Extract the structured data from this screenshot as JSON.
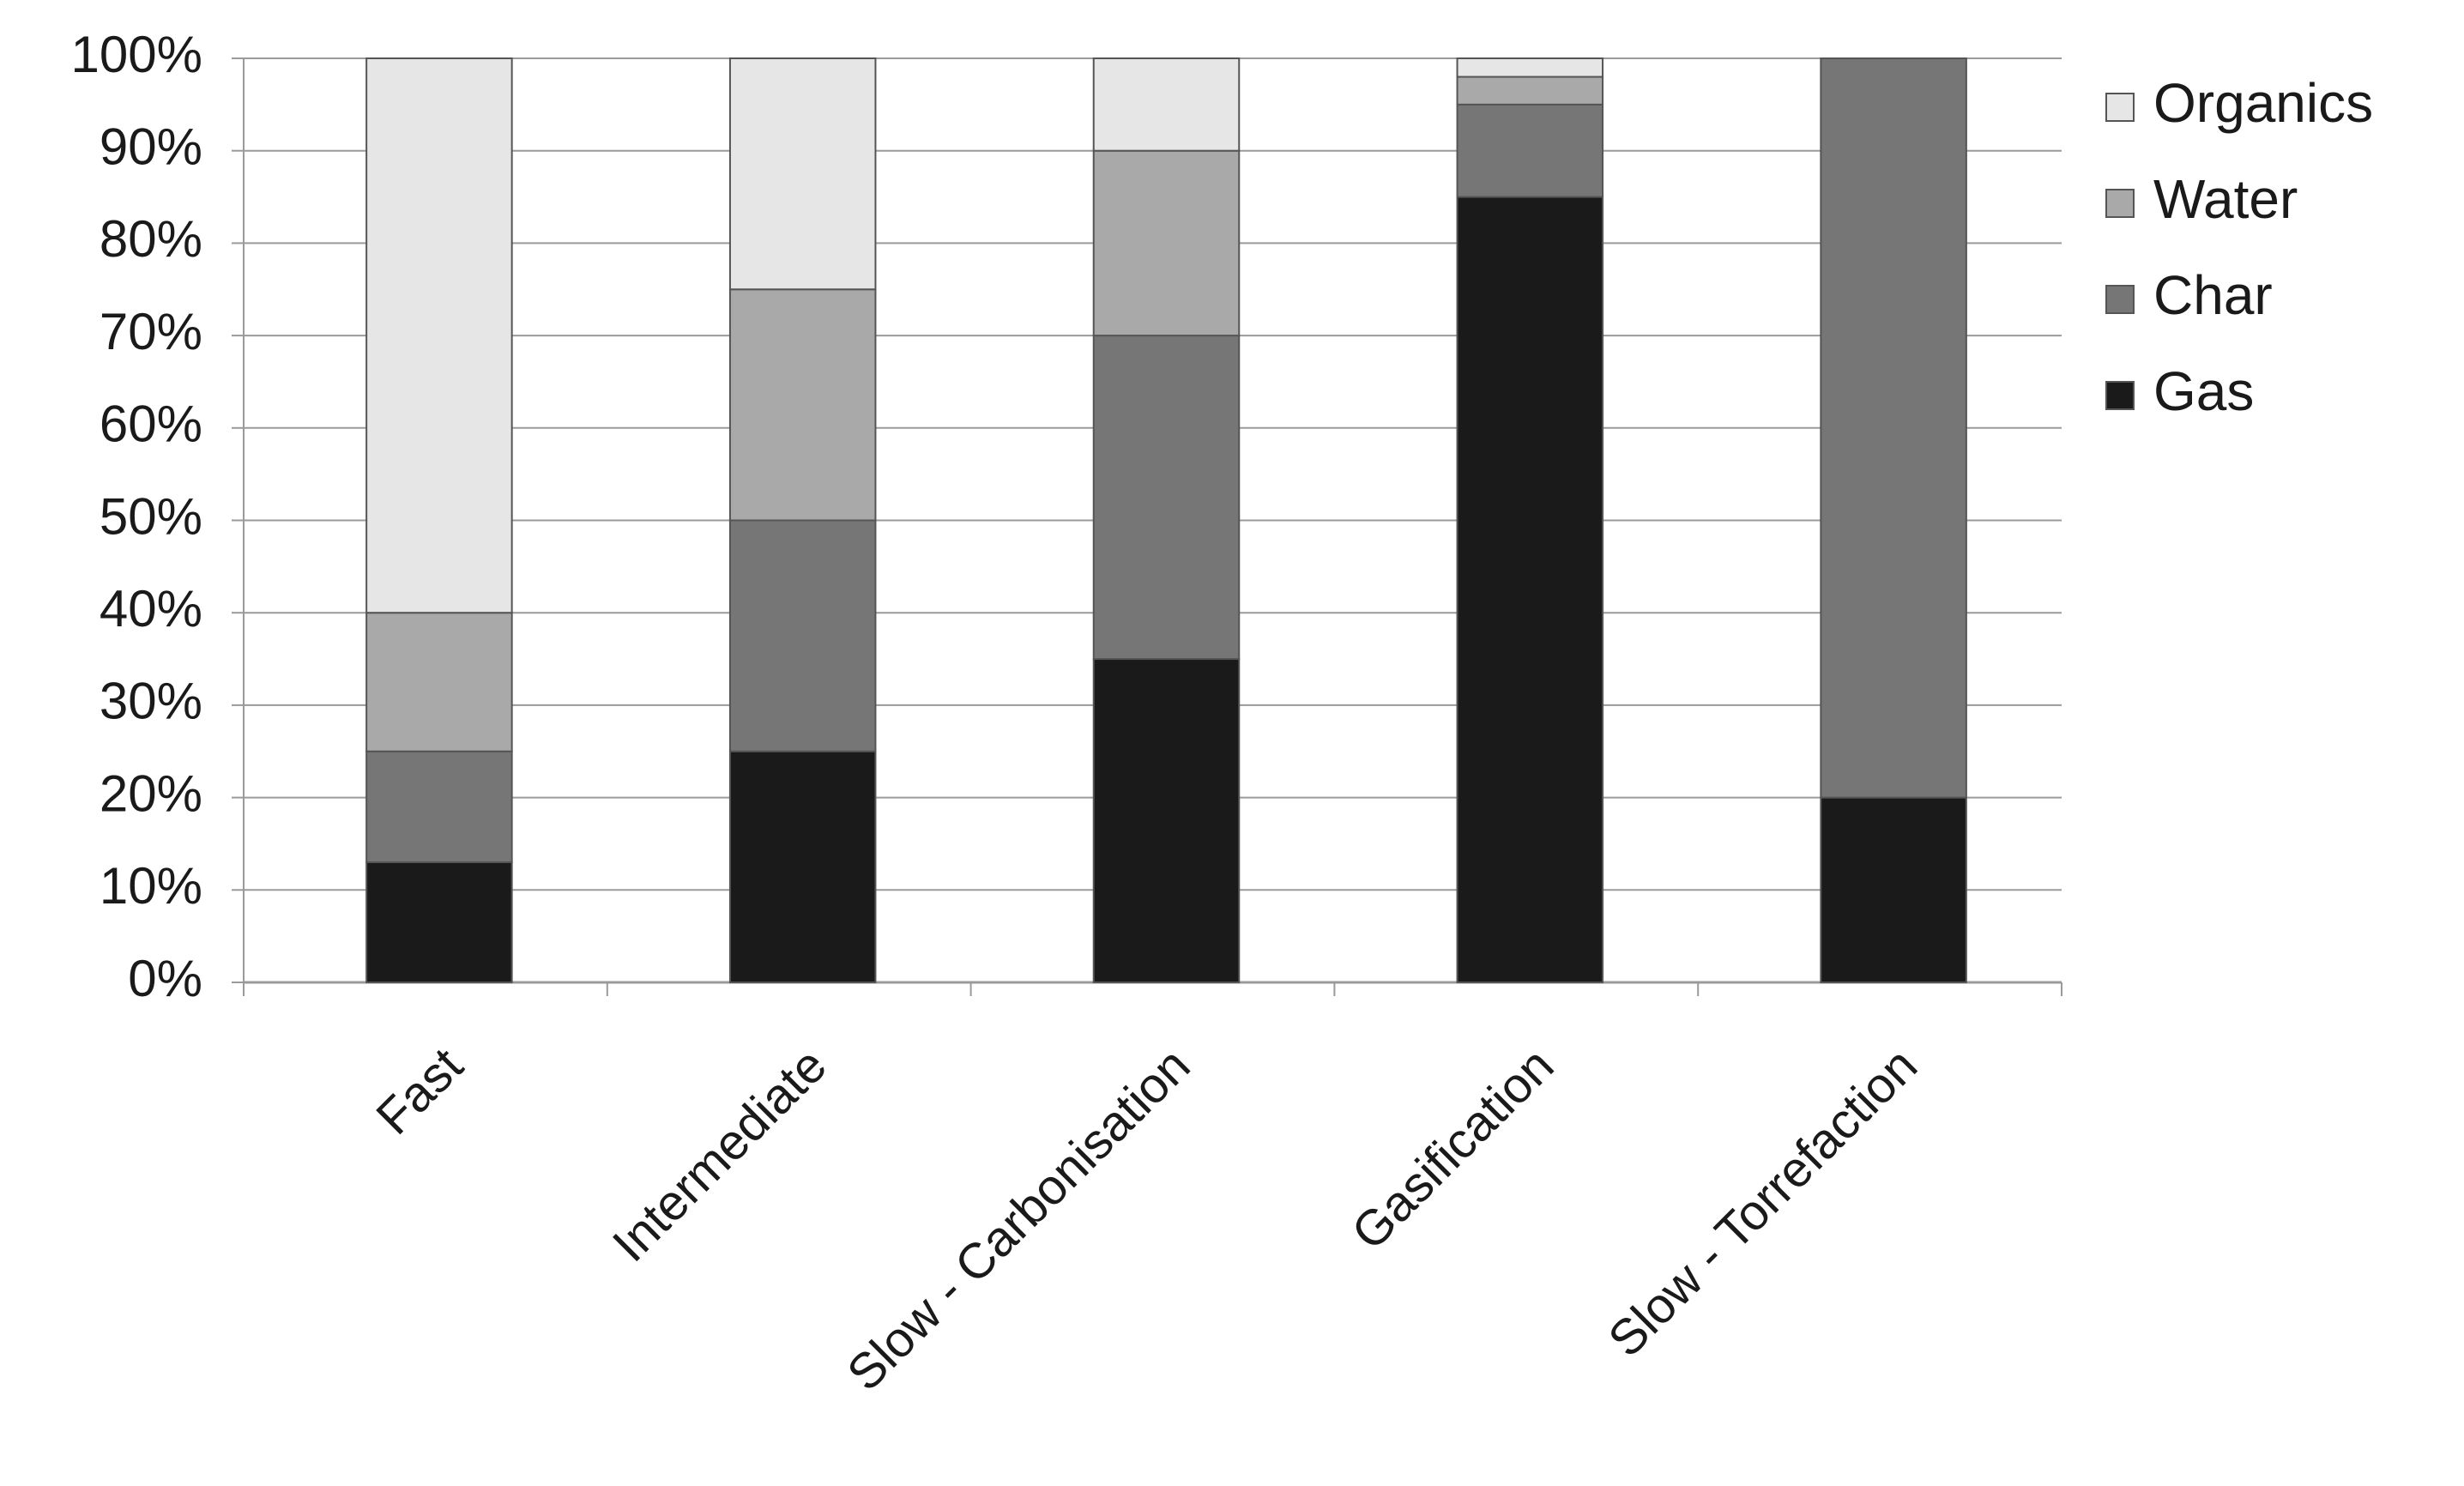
{
  "chart_data": {
    "type": "stacked_bar",
    "categories": [
      "Fast",
      "Intermediate",
      "Slow - Carbonisation",
      "Gasification",
      "Slow - Torrefaction"
    ],
    "series": [
      {
        "name": "Gas",
        "color": "#1a1a1a",
        "values": [
          13,
          25,
          35,
          85,
          20
        ]
      },
      {
        "name": "Char",
        "color": "#767676",
        "values": [
          12,
          25,
          35,
          10,
          80
        ]
      },
      {
        "name": "Water",
        "color": "#a9a9a9",
        "values": [
          15,
          25,
          20,
          3,
          0
        ]
      },
      {
        "name": "Organics",
        "color": "#e6e6e6",
        "values": [
          60,
          25,
          10,
          2,
          0
        ]
      }
    ],
    "ylim": [
      0,
      100
    ],
    "yticks": [
      {
        "value": 0,
        "label": "0%"
      },
      {
        "value": 10,
        "label": "10%"
      },
      {
        "value": 20,
        "label": "20%"
      },
      {
        "value": 30,
        "label": "30%"
      },
      {
        "value": 40,
        "label": "40%"
      },
      {
        "value": 50,
        "label": "50%"
      },
      {
        "value": 60,
        "label": "60%"
      },
      {
        "value": 70,
        "label": "70%"
      },
      {
        "value": 80,
        "label": "80%"
      },
      {
        "value": 90,
        "label": "90%"
      },
      {
        "value": 100,
        "label": "100%"
      }
    ],
    "grid": true,
    "legend": "right"
  }
}
